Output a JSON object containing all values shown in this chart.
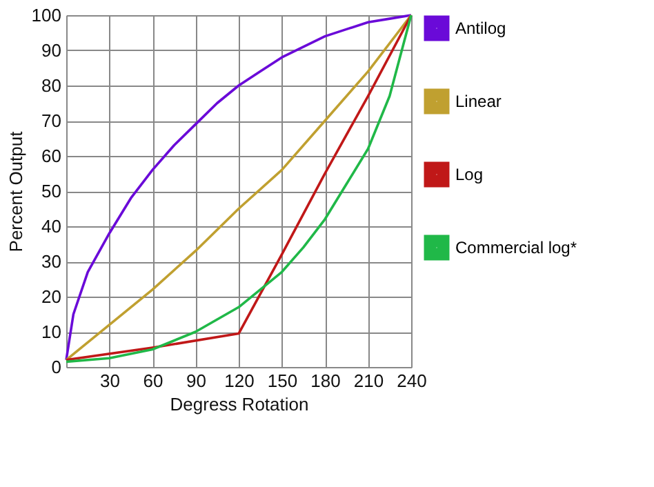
{
  "chart_data": {
    "type": "line",
    "xlabel": "Degress Rotation",
    "ylabel": "Percent Output",
    "xlim": [
      0,
      240
    ],
    "ylim": [
      0,
      100
    ],
    "xticks": [
      {
        "value": 0,
        "label": null
      },
      30,
      60,
      90,
      120,
      150,
      180,
      210,
      240
    ],
    "yticks": [
      0,
      10,
      20,
      30,
      40,
      50,
      60,
      70,
      80,
      90,
      100
    ],
    "grid": true,
    "legend": "top right",
    "marker": "none",
    "line_style": "solid",
    "series": [
      {
        "name": "Antilog",
        "color": "#6a0ad8",
        "x": [
          0,
          5,
          15,
          30,
          45,
          60,
          75,
          90,
          105,
          120,
          135,
          150,
          165,
          180,
          195,
          210,
          225,
          240
        ],
        "values": [
          2,
          15,
          27,
          38,
          48,
          56,
          63,
          69,
          75,
          80,
          84,
          88,
          91,
          94,
          96,
          98,
          99,
          100
        ]
      },
      {
        "name": "Linear",
        "color": "#c0a030",
        "x": [
          0,
          30,
          60,
          90,
          120,
          150,
          180,
          210,
          240
        ],
        "values": [
          2,
          12,
          22,
          33,
          45,
          56,
          70,
          84,
          100
        ]
      },
      {
        "name": "Log",
        "color": "#c01818",
        "x": [
          0,
          60,
          120,
          150,
          180,
          210,
          240
        ],
        "values": [
          2,
          5.5,
          9.5,
          32,
          55,
          77,
          100
        ]
      },
      {
        "name": "Commercial log*",
        "color": "#20b848",
        "x": [
          0,
          30,
          60,
          90,
          120,
          135,
          150,
          165,
          180,
          195,
          210,
          225,
          240
        ],
        "values": [
          1.5,
          2.5,
          5,
          10,
          17,
          22,
          27,
          34,
          42,
          52,
          62,
          77,
          100
        ]
      }
    ]
  }
}
